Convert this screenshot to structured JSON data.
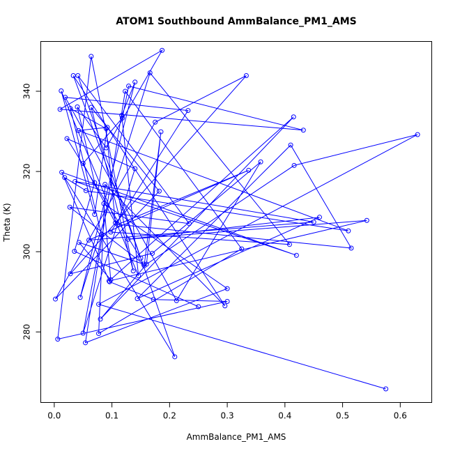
{
  "chart_data": {
    "type": "scatter",
    "title": "ATOM1 Southbound AmmBalance_PM1_AMS",
    "xlabel": "AmmBalance_PM1_AMS",
    "ylabel": "Theta (K)",
    "xlim": [
      -0.024,
      0.654
    ],
    "ylim": [
      262.5,
      352.5
    ],
    "x_ticks": [
      0.0,
      0.1,
      0.2,
      0.3,
      0.4,
      0.5,
      0.6
    ],
    "x_tick_labels": [
      "0.0",
      "0.1",
      "0.2",
      "0.3",
      "0.4",
      "0.5",
      "0.6"
    ],
    "y_ticks": [
      280,
      300,
      320,
      340
    ],
    "y_tick_labels": [
      "280",
      "300",
      "320",
      "340"
    ],
    "grid": false,
    "connected": true,
    "color": "#0000ff",
    "series": [
      {
        "x": [
          0.575,
          0.077,
          0.63,
          0.416,
          0.156,
          0.185,
          0.16,
          0.08,
          0.415,
          0.095,
          0.542,
          0.128,
          0.46,
          0.144,
          0.41,
          0.515,
          0.11,
          0.337,
          0.06,
          0.45,
          0.036,
          0.42,
          0.013,
          0.096,
          0.172,
          0.3,
          0.006,
          0.064,
          0.137,
          0.064,
          0.182,
          0.002,
          0.175,
          0.333,
          0.028,
          0.17,
          0.358,
          0.212,
          0.019,
          0.232,
          0.098,
          0.408,
          0.166,
          0.045,
          0.14,
          0.117,
          0.146,
          0.012,
          0.07,
          0.092,
          0.042,
          0.51,
          0.055,
          0.018,
          0.209,
          0.041,
          0.234,
          0.027,
          0.155,
          0.043,
          0.098,
          0.086,
          0.3,
          0.054,
          0.123,
          0.325,
          0.077,
          0.088,
          0.296,
          0.033,
          0.15,
          0.022,
          0.14,
          0.05,
          0.082,
          0.028,
          0.09,
          0.106,
          0.05,
          0.118,
          0.129,
          0.432,
          0.01,
          0.187,
          0.09,
          0.04,
          0.07,
          0.035,
          0.25
        ],
        "y": [
          265.8,
          286.9,
          329.2,
          321.5,
          296.5,
          329.9,
          296.9,
          283.2,
          333.6,
          292.7,
          307.8,
          303.1,
          308.6,
          288.3,
          326.6,
          300.9,
          306.8,
          320.3,
          302.9,
          307.4,
          317.5,
          299.1,
          319.8,
          292.5,
          288.1,
          287.6,
          278.2,
          348.7,
          295.2,
          336.0,
          315.1,
          288.2,
          332.3,
          343.9,
          294.5,
          299.6,
          322.4,
          287.8,
          338.5,
          335.2,
          304.9,
          301.8,
          344.6,
          288.6,
          342.3,
          334.0,
          294.0,
          340.1,
          309.3,
          331.0,
          330.2,
          305.2,
          315.2,
          318.5,
          273.8,
          343.9,
          307.0,
          311.1,
          296.9,
          302.3,
          293.0,
          312.0,
          290.8,
          277.3,
          340.0,
          300.7,
          279.6,
          316.8,
          286.5,
          343.9,
          298.4,
          328.2,
          320.7,
          279.7,
          304.2,
          335.7,
          330.7,
          307.2,
          322.0,
          333.3,
          341.3,
          330.3,
          335.5,
          350.2,
          325.9,
          336.1,
          317.2,
          300.1,
          286.3
        ]
      }
    ]
  }
}
